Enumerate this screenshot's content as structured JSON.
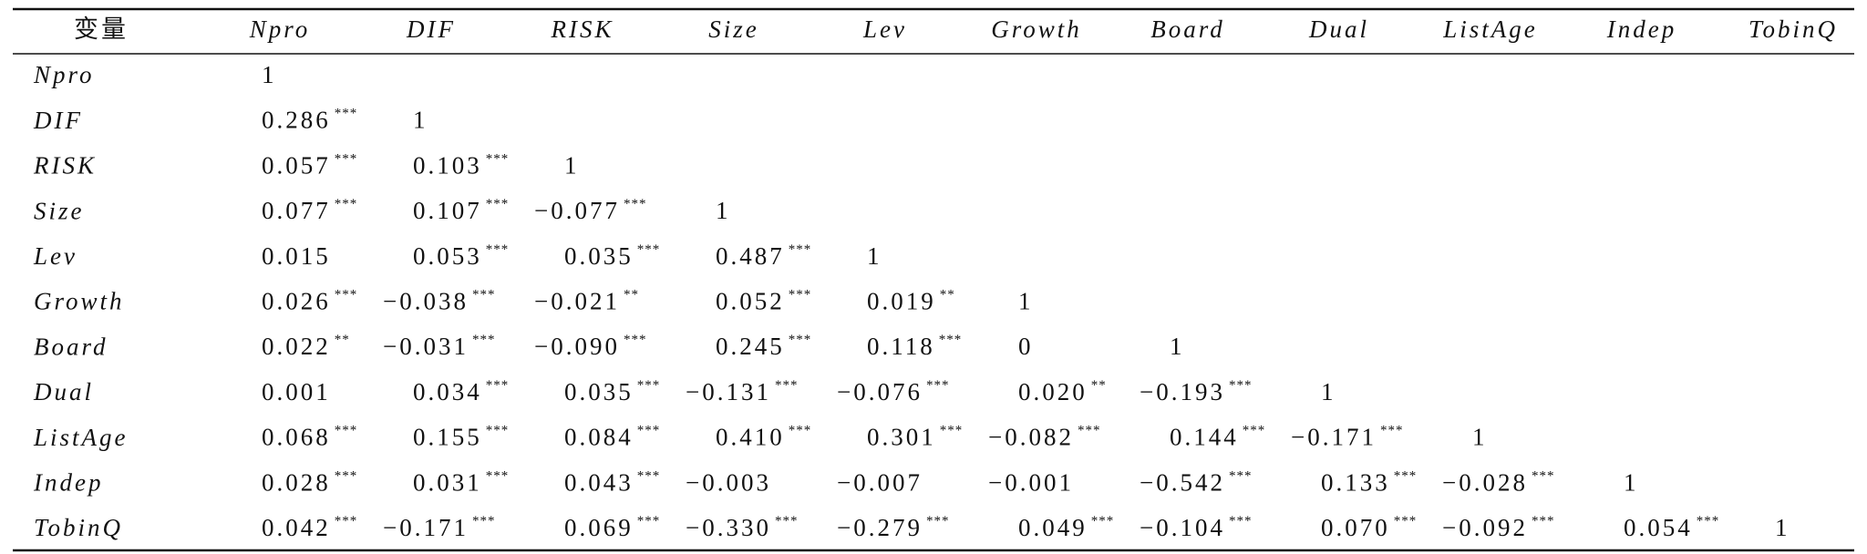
{
  "table": {
    "header": [
      "变量",
      "Npro",
      "DIF",
      "RISK",
      "Size",
      "Lev",
      "Growth",
      "Board",
      "Dual",
      "ListAge",
      "Indep",
      "TobinQ"
    ],
    "rows": [
      {
        "label": "Npro",
        "cells": [
          [
            "1"
          ]
        ]
      },
      {
        "label": "DIF",
        "cells": [
          [
            "0.286",
            "***"
          ],
          [
            "1"
          ]
        ]
      },
      {
        "label": "RISK",
        "cells": [
          [
            "0.057",
            "***"
          ],
          [
            "0.103",
            "***"
          ],
          [
            "1"
          ]
        ]
      },
      {
        "label": "Size",
        "cells": [
          [
            "0.077",
            "***"
          ],
          [
            "0.107",
            "***"
          ],
          [
            "−0.077",
            "***"
          ],
          [
            "1"
          ]
        ]
      },
      {
        "label": "Lev",
        "cells": [
          [
            "0.015"
          ],
          [
            "0.053",
            "***"
          ],
          [
            "0.035",
            "***"
          ],
          [
            "0.487",
            "***"
          ],
          [
            "1"
          ]
        ]
      },
      {
        "label": "Growth",
        "cells": [
          [
            "0.026",
            "***"
          ],
          [
            "−0.038",
            "***"
          ],
          [
            "−0.021",
            "**"
          ],
          [
            "0.052",
            "***"
          ],
          [
            "0.019",
            "**"
          ],
          [
            "1"
          ]
        ]
      },
      {
        "label": "Board",
        "cells": [
          [
            "0.022",
            "**"
          ],
          [
            "−0.031",
            "***"
          ],
          [
            "−0.090",
            "***"
          ],
          [
            "0.245",
            "***"
          ],
          [
            "0.118",
            "***"
          ],
          [
            "0"
          ],
          [
            "1"
          ]
        ]
      },
      {
        "label": "Dual",
        "cells": [
          [
            "0.001"
          ],
          [
            "0.034",
            "***"
          ],
          [
            "0.035",
            "***"
          ],
          [
            "−0.131",
            "***"
          ],
          [
            "−0.076",
            "***"
          ],
          [
            "0.020",
            "**"
          ],
          [
            "−0.193",
            "***"
          ],
          [
            "1"
          ]
        ]
      },
      {
        "label": "ListAge",
        "cells": [
          [
            "0.068",
            "***"
          ],
          [
            "0.155",
            "***"
          ],
          [
            "0.084",
            "***"
          ],
          [
            "0.410",
            "***"
          ],
          [
            "0.301",
            "***"
          ],
          [
            "−0.082",
            "***"
          ],
          [
            "0.144",
            "***"
          ],
          [
            "−0.171",
            "***"
          ],
          [
            "1"
          ]
        ]
      },
      {
        "label": "Indep",
        "cells": [
          [
            "0.028",
            "***"
          ],
          [
            "0.031",
            "***"
          ],
          [
            "0.043",
            "***"
          ],
          [
            "−0.003"
          ],
          [
            "−0.007"
          ],
          [
            "−0.001"
          ],
          [
            "−0.542",
            "***"
          ],
          [
            "0.133",
            "***"
          ],
          [
            "−0.028",
            "***"
          ],
          [
            "1"
          ]
        ]
      },
      {
        "label": "TobinQ",
        "cells": [
          [
            "0.042",
            "***"
          ],
          [
            "−0.171",
            "***"
          ],
          [
            "0.069",
            "***"
          ],
          [
            "−0.330",
            "***"
          ],
          [
            "−0.279",
            "***"
          ],
          [
            "0.049",
            "***"
          ],
          [
            "−0.104",
            "***"
          ],
          [
            "0.070",
            "***"
          ],
          [
            "−0.092",
            "***"
          ],
          [
            "0.054",
            "***"
          ],
          [
            "1"
          ]
        ]
      }
    ]
  }
}
